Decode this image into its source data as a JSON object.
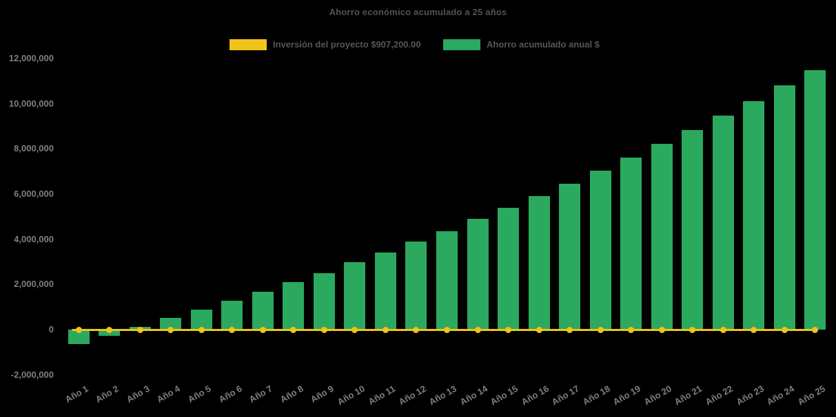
{
  "chart_data": {
    "type": "bar",
    "title": "Ahorro económico acumulado a 25 años",
    "background_color": "#000000",
    "grid": false,
    "legend_position": "top",
    "x_label_rotation_deg": -30,
    "ylim": [
      -2000000,
      12000000
    ],
    "categories": [
      "Año 1",
      "Año 2",
      "Año 3",
      "Año 4",
      "Año 5",
      "Año 6",
      "Año 7",
      "Año 8",
      "Año 9",
      "Año 10",
      "Año 11",
      "Año 12",
      "Año 13",
      "Año 14",
      "Año 15",
      "Año 16",
      "Año 17",
      "Año 18",
      "Año 19",
      "Año 20",
      "Año 21",
      "Año 22",
      "Año 23",
      "Año 24",
      "Año 25"
    ],
    "series": [
      {
        "name": "Ahorro acumulado anual $",
        "type": "bar",
        "color": "#2BA95E",
        "values": [
          -640000,
          -270000,
          120000,
          520000,
          880000,
          1270000,
          1690000,
          2100000,
          2500000,
          2980000,
          3420000,
          3890000,
          4360000,
          4900000,
          5400000,
          5910000,
          6450000,
          7030000,
          7620000,
          8220000,
          8830000,
          9460000,
          10100000,
          10800000,
          11480000
        ]
      },
      {
        "name": "Inversión del proyecto $907,200.00",
        "type": "line",
        "color": "#F0C41B",
        "marker": "circle",
        "investment_value": 907200,
        "plotted_y_value": 0
      }
    ],
    "y_ticks": [
      {
        "value": 12000000,
        "label": "12,000,000"
      },
      {
        "value": 10000000,
        "label": "10,000,000"
      },
      {
        "value": 8000000,
        "label": "8,000,000"
      },
      {
        "value": 6000000,
        "label": "6,000,000"
      },
      {
        "value": 4000000,
        "label": "4,000,000"
      },
      {
        "value": 2000000,
        "label": "2,000,000"
      },
      {
        "value": 0,
        "label": "0"
      },
      {
        "value": -2000000,
        "label": "-2,000,000"
      }
    ]
  },
  "legend": [
    {
      "label": "Inversión del proyecto $907,200.00",
      "color": "#F0C41B"
    },
    {
      "label": "Ahorro acumulado anual $",
      "color": "#2BA95E"
    }
  ]
}
